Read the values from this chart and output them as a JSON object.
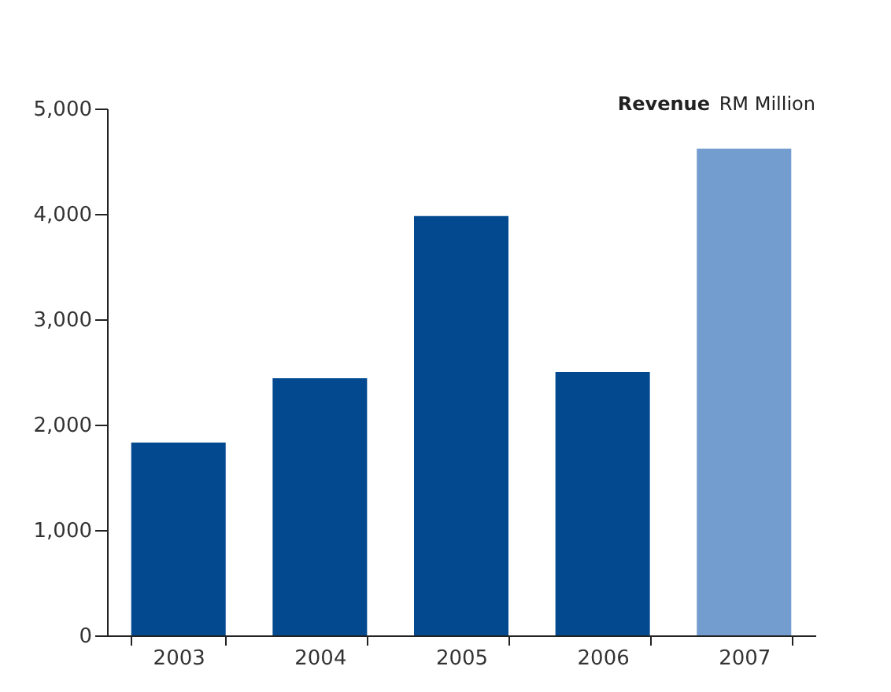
{
  "chart_data": {
    "type": "bar",
    "title": "Revenue",
    "ylabel": "RM Million",
    "categories": [
      "2003",
      "2004",
      "2005",
      "2006",
      "2007"
    ],
    "values": [
      1830,
      2440,
      3980,
      2500,
      4620
    ],
    "colors": [
      "#02498f",
      "#02498f",
      "#02498f",
      "#02498f",
      "#739ccf"
    ],
    "ylim": [
      0,
      5000
    ],
    "yticks": [
      0,
      {
        "value": 1000,
        "label": "1,000"
      },
      {
        "value": 2000,
        "label": "2,000"
      },
      {
        "value": 3000,
        "label": "3,000"
      },
      {
        "value": 4000,
        "label": "4,000"
      },
      {
        "value": 5000,
        "label": "5,000"
      }
    ],
    "grid": false
  }
}
